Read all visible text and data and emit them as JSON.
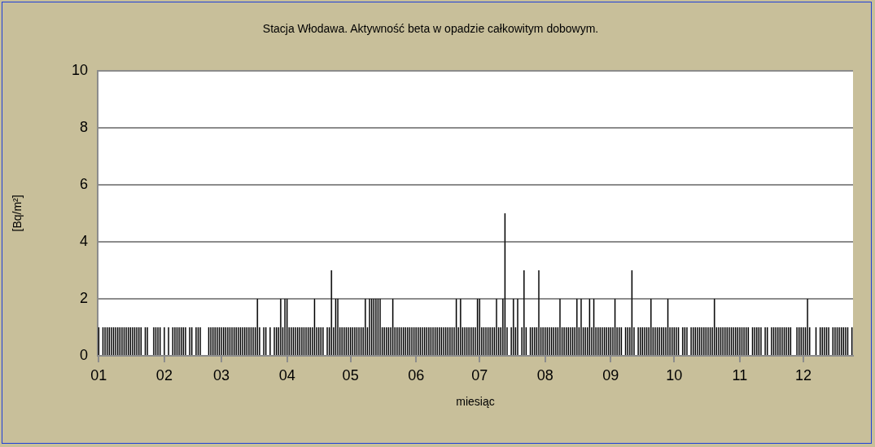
{
  "chart_data": {
    "type": "bar",
    "title": "Stacja Włodawa. Aktywność beta w opadzie całkowitym dobowym.",
    "xlabel": "miesiąc",
    "ylabel": "[Bq/m²]",
    "color": "#000000",
    "categories": [
      "01",
      null,
      null,
      null,
      null,
      null,
      null,
      null,
      null,
      null,
      null,
      null,
      null,
      null,
      null,
      null,
      null,
      null,
      null,
      null,
      null,
      null,
      null,
      null,
      null,
      null,
      null,
      null,
      null,
      null,
      null,
      "02",
      null,
      null,
      null,
      null,
      null,
      null,
      null,
      null,
      null,
      null,
      null,
      null,
      null,
      null,
      null,
      null,
      null,
      null,
      null,
      null,
      null,
      null,
      null,
      null,
      null,
      null,
      "03",
      null,
      null,
      null,
      null,
      null,
      null,
      null,
      null,
      null,
      null,
      null,
      null,
      null,
      null,
      null,
      null,
      null,
      null,
      null,
      null,
      null,
      null,
      null,
      null,
      null,
      null,
      null,
      null,
      null,
      null,
      "04",
      null,
      null,
      null,
      null,
      null,
      null,
      null,
      null,
      null,
      null,
      null,
      null,
      null,
      null,
      null,
      null,
      null,
      null,
      null,
      null,
      null,
      null,
      null,
      null,
      null,
      null,
      null,
      null,
      null,
      "05",
      null,
      null,
      null,
      null,
      null,
      null,
      null,
      null,
      null,
      null,
      null,
      null,
      null,
      null,
      null,
      null,
      null,
      null,
      null,
      null,
      null,
      null,
      null,
      null,
      null,
      null,
      null,
      null,
      null,
      null,
      "06",
      null,
      null,
      null,
      null,
      null,
      null,
      null,
      null,
      null,
      null,
      null,
      null,
      null,
      null,
      null,
      null,
      null,
      null,
      null,
      null,
      null,
      null,
      null,
      null,
      null,
      null,
      null,
      null,
      null,
      "07",
      null,
      null,
      null,
      null,
      null,
      null,
      null,
      null,
      null,
      null,
      null,
      null,
      null,
      null,
      null,
      null,
      null,
      null,
      null,
      null,
      null,
      null,
      null,
      null,
      null,
      null,
      null,
      null,
      null,
      null,
      "08",
      null,
      null,
      null,
      null,
      null,
      null,
      null,
      null,
      null,
      null,
      null,
      null,
      null,
      null,
      null,
      null,
      null,
      null,
      null,
      null,
      null,
      null,
      null,
      null,
      null,
      null,
      null,
      null,
      null,
      null,
      "09",
      null,
      null,
      null,
      null,
      null,
      null,
      null,
      null,
      null,
      null,
      null,
      null,
      null,
      null,
      null,
      null,
      null,
      null,
      null,
      null,
      null,
      null,
      null,
      null,
      null,
      null,
      null,
      null,
      null,
      "10",
      null,
      null,
      null,
      null,
      null,
      null,
      null,
      null,
      null,
      null,
      null,
      null,
      null,
      null,
      null,
      null,
      null,
      null,
      null,
      null,
      null,
      null,
      null,
      null,
      null,
      null,
      null,
      null,
      null,
      null,
      "11",
      null,
      null,
      null,
      null,
      null,
      null,
      null,
      null,
      null,
      null,
      null,
      null,
      null,
      null,
      null,
      null,
      null,
      null,
      null,
      null,
      null,
      null,
      null,
      null,
      null,
      null,
      null,
      null,
      null,
      "12",
      null,
      null,
      null,
      null,
      null,
      null,
      null,
      null,
      null,
      null,
      null,
      null,
      null,
      null,
      null,
      null,
      null,
      null,
      null,
      null,
      null,
      null,
      null
    ],
    "values": [
      1,
      0,
      1,
      1,
      1,
      1,
      1,
      1,
      1,
      1,
      1,
      1,
      1,
      1,
      1,
      1,
      1,
      1,
      1,
      1,
      1,
      0,
      1,
      1,
      0,
      0,
      1,
      1,
      1,
      1,
      0,
      1,
      0,
      1,
      0,
      1,
      1,
      1,
      1,
      1,
      1,
      1,
      0,
      1,
      1,
      0,
      1,
      1,
      1,
      0,
      0,
      0,
      1,
      1,
      1,
      1,
      1,
      1,
      1,
      1,
      1,
      1,
      1,
      1,
      1,
      1,
      1,
      1,
      1,
      1,
      1,
      1,
      1,
      1,
      1,
      2,
      1,
      0,
      1,
      1,
      0,
      1,
      0,
      1,
      1,
      1,
      2,
      1,
      2,
      2,
      1,
      1,
      1,
      1,
      1,
      1,
      1,
      1,
      1,
      1,
      1,
      1,
      2,
      1,
      1,
      1,
      1,
      0,
      1,
      1,
      3,
      1,
      2,
      2,
      1,
      1,
      1,
      1,
      1,
      1,
      1,
      1,
      1,
      1,
      1,
      1,
      2,
      1,
      2,
      2,
      2,
      2,
      2,
      2,
      1,
      1,
      1,
      1,
      1,
      2,
      1,
      1,
      1,
      1,
      1,
      1,
      1,
      1,
      1,
      1,
      1,
      1,
      1,
      1,
      1,
      1,
      1,
      1,
      1,
      1,
      1,
      1,
      1,
      1,
      1,
      1,
      1,
      1,
      1,
      2,
      1,
      2,
      1,
      1,
      1,
      1,
      1,
      1,
      1,
      2,
      2,
      1,
      1,
      1,
      1,
      1,
      1,
      1,
      2,
      1,
      1,
      2,
      5,
      1,
      0,
      1,
      2,
      1,
      2,
      0,
      1,
      3,
      1,
      0,
      1,
      1,
      1,
      1,
      3,
      1,
      1,
      1,
      1,
      1,
      1,
      1,
      1,
      1,
      2,
      1,
      1,
      1,
      1,
      1,
      1,
      1,
      2,
      1,
      2,
      1,
      1,
      1,
      2,
      1,
      2,
      1,
      1,
      1,
      1,
      1,
      1,
      1,
      1,
      1,
      2,
      1,
      1,
      1,
      0,
      1,
      1,
      1,
      3,
      1,
      0,
      1,
      1,
      1,
      1,
      1,
      1,
      2,
      1,
      1,
      1,
      1,
      1,
      1,
      1,
      2,
      1,
      1,
      1,
      1,
      1,
      0,
      1,
      1,
      1,
      0,
      1,
      1,
      1,
      1,
      1,
      1,
      1,
      1,
      1,
      1,
      1,
      2,
      1,
      1,
      1,
      1,
      1,
      1,
      1,
      1,
      1,
      1,
      1,
      1,
      1,
      1,
      1,
      1,
      0,
      1,
      1,
      1,
      1,
      1,
      0,
      1,
      1,
      0,
      1,
      1,
      1,
      1,
      1,
      1,
      1,
      1,
      1,
      1,
      0,
      0,
      1,
      1,
      1,
      1,
      1,
      2,
      1,
      0,
      0,
      1,
      0,
      1,
      1,
      1,
      1,
      1,
      0,
      1,
      1,
      1,
      1,
      1,
      1,
      1,
      1,
      0,
      1
    ],
    "ylim": [
      0,
      10
    ],
    "yticks": [
      0,
      2,
      4,
      6,
      8,
      10
    ],
    "grid": "y"
  }
}
